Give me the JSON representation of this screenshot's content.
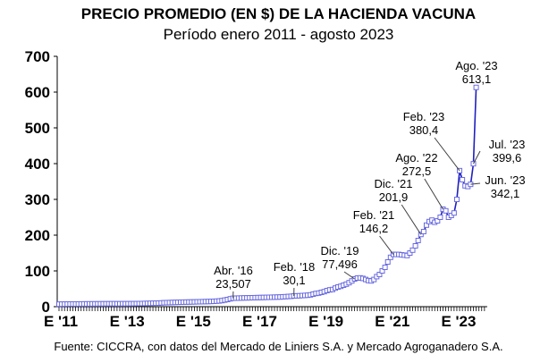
{
  "chart_data": {
    "type": "line",
    "title": "PRECIO PROMEDIO (EN $) DE LA HACIENDA VACUNA",
    "subtitle": "Período enero 2011 - agosto 2023",
    "source": "Fuente: CICCRA, con datos del Mercado de Liniers S.A. y Mercado Agroganadero S.A.",
    "xlabel": "",
    "ylabel": "",
    "ylim": [
      0,
      700
    ],
    "yticks": [
      "0",
      "100",
      "200",
      "300",
      "400",
      "500",
      "600",
      "700"
    ],
    "xticks": [
      "E '11",
      "E '13",
      "E '15",
      "E '17",
      "E '19",
      "E '21",
      "E '23"
    ],
    "x_start": "2011-01",
    "x_end": "2023-08",
    "frequency": "monthly",
    "grid": false,
    "series_color": "#2020c0",
    "marker": "square",
    "values": [
      7,
      7.2,
      7.3,
      7.4,
      7.5,
      7.5,
      7.6,
      7.6,
      7.7,
      7.8,
      7.8,
      7.9,
      7.9,
      8,
      8,
      8.1,
      8.1,
      8.2,
      8.2,
      8.3,
      8.3,
      8.2,
      8.2,
      8.3,
      8.3,
      8.4,
      8.4,
      8.5,
      8.6,
      8.7,
      8.8,
      9,
      9.2,
      9.4,
      9.6,
      9.8,
      10,
      10.5,
      11,
      11.3,
      11.5,
      11.8,
      12,
      12.3,
      12.5,
      12.7,
      12.9,
      13,
      13.2,
      13.4,
      13.6,
      13.8,
      14,
      14.2,
      14.4,
      14.6,
      15,
      15.5,
      16,
      17,
      18.5,
      20,
      22,
      23.507,
      23.8,
      24,
      24.2,
      24.5,
      24.6,
      24.8,
      25,
      25.2,
      25.4,
      25.6,
      25.8,
      26,
      26.2,
      26.4,
      26.6,
      26.8,
      27,
      27.5,
      28,
      28.5,
      29,
      30.1,
      30.3,
      30.5,
      31,
      31.5,
      32,
      33,
      35,
      37,
      38,
      40,
      42,
      45,
      47,
      48,
      52,
      55,
      57,
      60,
      63,
      67,
      72,
      77.496,
      80,
      80.5,
      79,
      76,
      73,
      72,
      76,
      84,
      90,
      100,
      110,
      125,
      138,
      146.2,
      146,
      146,
      145,
      144,
      143,
      150,
      158,
      170,
      185,
      201.9,
      210,
      228,
      238,
      242,
      236,
      240,
      250,
      272.5,
      268,
      250,
      255,
      262,
      300,
      380.4,
      355,
      338,
      336,
      342.1,
      399.6,
      613.1
    ],
    "annotations": [
      {
        "month": "2016-04",
        "label": "Abr. '16",
        "value": "23,507"
      },
      {
        "month": "2018-02",
        "label": "Feb. '18",
        "value": "30,1"
      },
      {
        "month": "2019-12",
        "label": "Dic. '19",
        "value": "77,496"
      },
      {
        "month": "2021-02",
        "label": "Feb. '21",
        "value": "146,2"
      },
      {
        "month": "2021-12",
        "label": "Dic. '21",
        "value": "201,9"
      },
      {
        "month": "2022-08",
        "label": "Ago. '22",
        "value": "272,5"
      },
      {
        "month": "2023-02",
        "label": "Feb. '23",
        "value": "380,4"
      },
      {
        "month": "2023-08",
        "label": "Ago. '23",
        "value": "613,1"
      },
      {
        "month": "2023-07",
        "label": "Jul. '23",
        "value": "399,6"
      },
      {
        "month": "2023-06",
        "label": "Jun. '23",
        "value": "342,1"
      }
    ]
  }
}
